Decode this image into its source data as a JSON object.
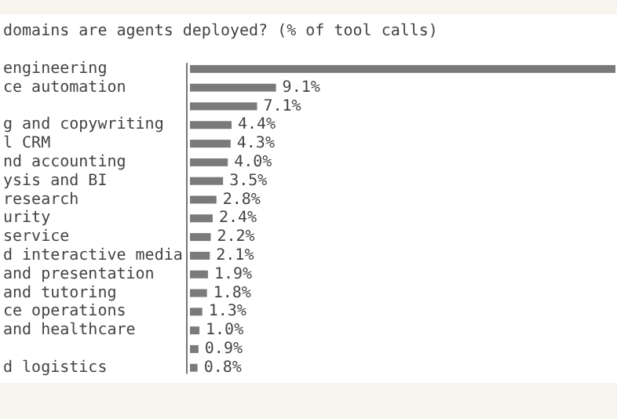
{
  "chart_data": {
    "type": "bar",
    "orientation": "horizontal",
    "title": "domains are agents deployed? (% of tool calls)",
    "categories": [
      "engineering",
      "ce automation",
      null,
      "g and copywriting",
      "l CRM",
      "nd accounting",
      "ysis and BI",
      "research",
      "urity",
      "service",
      "d interactive media",
      "and presentation",
      "and tutoring",
      "ce operations",
      "and healthcare",
      null,
      "d logistics"
    ],
    "values": [
      45,
      9.1,
      7.1,
      4.4,
      4.3,
      4.0,
      3.5,
      2.8,
      2.4,
      2.2,
      2.1,
      1.9,
      1.8,
      1.3,
      1.0,
      0.9,
      0.8
    ],
    "value_labels": [
      null,
      "9.1%",
      "7.1%",
      "4.4%",
      "4.3%",
      "4.0%",
      "3.5%",
      "2.8%",
      "2.4%",
      "2.2%",
      "2.1%",
      "1.9%",
      "1.8%",
      "1.3%",
      "1.0%",
      "0.9%",
      "0.8%"
    ],
    "color": "#7a7a7a"
  }
}
